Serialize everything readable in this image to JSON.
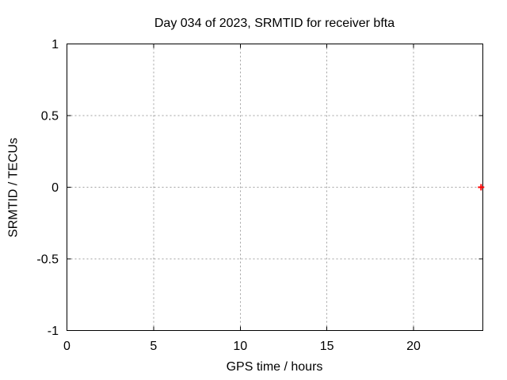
{
  "window": {
    "background": "#ffffff"
  },
  "chart_data": {
    "type": "scatter",
    "title": "Day 034 of 2023, SRMTID for receiver bfta",
    "xlabel": "GPS time / hours",
    "ylabel": "SRMTID / TECUs",
    "xlim": [
      0,
      24
    ],
    "ylim": [
      -1,
      1
    ],
    "xticks": [
      0,
      5,
      10,
      15,
      20
    ],
    "xtick_labels": [
      "0",
      "5",
      "10",
      "15",
      "20"
    ],
    "yticks": [
      -1,
      -0.5,
      0,
      0.5,
      1
    ],
    "ytick_labels": [
      "-1",
      "-0.5",
      "0",
      "0.5",
      "1"
    ],
    "grid": "dotted",
    "legend_position": "none",
    "series": [
      {
        "name": "SRMTID",
        "marker": "plus",
        "marker_color": "#ff0000",
        "points": [
          {
            "x": 23.9,
            "y": 0.0
          }
        ]
      }
    ],
    "colors": {
      "border": "#000000",
      "grid": "#a0a0a0",
      "text": "#000000"
    }
  }
}
